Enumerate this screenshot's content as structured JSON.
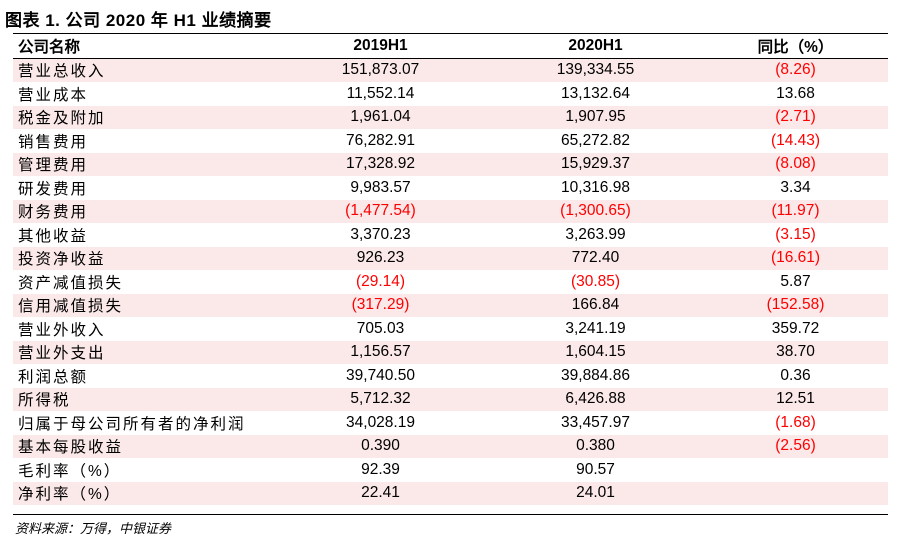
{
  "title": "图表 1. 公司 2020 年 H1 业绩摘要",
  "header": [
    "公司名称",
    "2019H1",
    "2020H1",
    "同比（%）"
  ],
  "rows": [
    {
      "name": "营业总收入",
      "y2019": "151,873.07",
      "y2020": "139,334.55",
      "yoy": "(8.26)",
      "shade": true
    },
    {
      "name": "营业成本",
      "y2019": "11,552.14",
      "y2020": "13,132.64",
      "yoy": "13.68",
      "shade": false
    },
    {
      "name": "税金及附加",
      "y2019": "1,961.04",
      "y2020": "1,907.95",
      "yoy": "(2.71)",
      "shade": true
    },
    {
      "name": "销售费用",
      "y2019": "76,282.91",
      "y2020": "65,272.82",
      "yoy": "(14.43)",
      "shade": false
    },
    {
      "name": "管理费用",
      "y2019": "17,328.92",
      "y2020": "15,929.37",
      "yoy": "(8.08)",
      "shade": true
    },
    {
      "name": "研发费用",
      "y2019": "9,983.57",
      "y2020": "10,316.98",
      "yoy": "3.34",
      "shade": false
    },
    {
      "name": "财务费用",
      "y2019": "(1,477.54)",
      "y2020": "(1,300.65)",
      "yoy": "(11.97)",
      "shade": true
    },
    {
      "name": "其他收益",
      "y2019": "3,370.23",
      "y2020": "3,263.99",
      "yoy": "(3.15)",
      "shade": false
    },
    {
      "name": "投资净收益",
      "y2019": "926.23",
      "y2020": "772.40",
      "yoy": "(16.61)",
      "shade": true
    },
    {
      "name": "资产减值损失",
      "y2019": "(29.14)",
      "y2020": "(30.85)",
      "yoy": "5.87",
      "shade": false
    },
    {
      "name": "信用减值损失",
      "y2019": "(317.29)",
      "y2020": "166.84",
      "yoy": "(152.58)",
      "shade": true
    },
    {
      "name": "营业外收入",
      "y2019": "705.03",
      "y2020": "3,241.19",
      "yoy": "359.72",
      "shade": false
    },
    {
      "name": "营业外支出",
      "y2019": "1,156.57",
      "y2020": "1,604.15",
      "yoy": "38.70",
      "shade": true
    },
    {
      "name": "利润总额",
      "y2019": "39,740.50",
      "y2020": "39,884.86",
      "yoy": "0.36",
      "shade": false
    },
    {
      "name": "所得税",
      "y2019": "5,712.32",
      "y2020": "6,426.88",
      "yoy": "12.51",
      "shade": true
    },
    {
      "name": "归属于母公司所有者的净利润",
      "y2019": "34,028.19",
      "y2020": "33,457.97",
      "yoy": "(1.68)",
      "shade": false
    },
    {
      "name": "基本每股收益",
      "y2019": "0.390",
      "y2020": "0.380",
      "yoy": "(2.56)",
      "shade": true
    },
    {
      "name": "毛利率（%）",
      "y2019": "92.39",
      "y2020": "90.57",
      "yoy": "",
      "shade": false
    },
    {
      "name": "净利率（%）",
      "y2019": "22.41",
      "y2020": "24.01",
      "yoy": "",
      "shade": true
    }
  ],
  "source": "资料来源：万得，中银证券",
  "colors": {
    "negative": "#ff0000",
    "row_shade": "#fbe8e8"
  }
}
